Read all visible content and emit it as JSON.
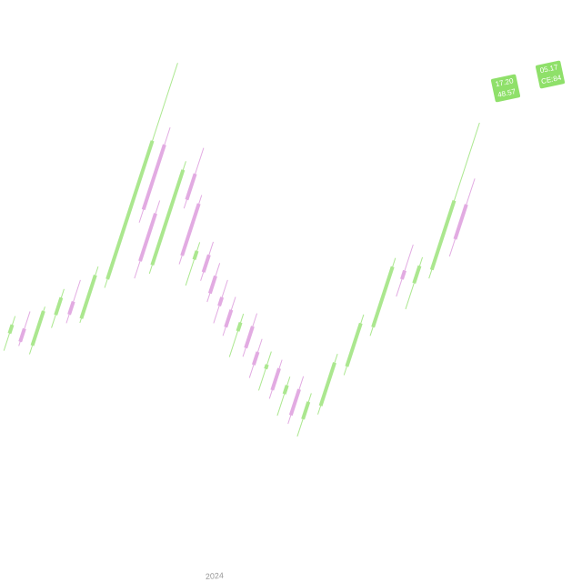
{
  "chart_data": {
    "type": "candlestick",
    "x_label": "2024",
    "up_color": "#8fe06a",
    "down_color": "#d98fd9",
    "ylim": [
      0,
      100
    ],
    "candles": [
      {
        "o": 20,
        "h": 24,
        "l": 16,
        "c": 22
      },
      {
        "o": 22,
        "h": 26,
        "l": 18,
        "c": 19
      },
      {
        "o": 19,
        "h": 28,
        "l": 17,
        "c": 27
      },
      {
        "o": 27,
        "h": 33,
        "l": 24,
        "c": 31
      },
      {
        "o": 31,
        "h": 36,
        "l": 26,
        "c": 28
      },
      {
        "o": 28,
        "h": 40,
        "l": 27,
        "c": 38
      },
      {
        "o": 38,
        "h": 88,
        "l": 36,
        "c": 70
      },
      {
        "o": 70,
        "h": 74,
        "l": 52,
        "c": 55
      },
      {
        "o": 55,
        "h": 58,
        "l": 40,
        "c": 44
      },
      {
        "o": 44,
        "h": 68,
        "l": 42,
        "c": 66
      },
      {
        "o": 66,
        "h": 72,
        "l": 58,
        "c": 60
      },
      {
        "o": 60,
        "h": 62,
        "l": 46,
        "c": 48
      },
      {
        "o": 48,
        "h": 52,
        "l": 42,
        "c": 50
      },
      {
        "o": 50,
        "h": 53,
        "l": 44,
        "c": 46
      },
      {
        "o": 46,
        "h": 49,
        "l": 40,
        "c": 42
      },
      {
        "o": 42,
        "h": 46,
        "l": 36,
        "c": 40
      },
      {
        "o": 40,
        "h": 43,
        "l": 34,
        "c": 36
      },
      {
        "o": 36,
        "h": 40,
        "l": 30,
        "c": 38
      },
      {
        "o": 38,
        "h": 41,
        "l": 31,
        "c": 33
      },
      {
        "o": 33,
        "h": 36,
        "l": 27,
        "c": 30
      },
      {
        "o": 30,
        "h": 34,
        "l": 25,
        "c": 31
      },
      {
        "o": 31,
        "h": 33,
        "l": 24,
        "c": 26
      },
      {
        "o": 26,
        "h": 30,
        "l": 21,
        "c": 28
      },
      {
        "o": 28,
        "h": 31,
        "l": 20,
        "c": 22
      },
      {
        "o": 22,
        "h": 28,
        "l": 18,
        "c": 26
      },
      {
        "o": 26,
        "h": 38,
        "l": 24,
        "c": 36
      },
      {
        "o": 36,
        "h": 48,
        "l": 34,
        "c": 46
      },
      {
        "o": 46,
        "h": 62,
        "l": 44,
        "c": 60
      },
      {
        "o": 60,
        "h": 66,
        "l": 54,
        "c": 58
      },
      {
        "o": 58,
        "h": 64,
        "l": 52,
        "c": 62
      },
      {
        "o": 62,
        "h": 96,
        "l": 60,
        "c": 78
      },
      {
        "o": 78,
        "h": 84,
        "l": 66,
        "c": 70
      }
    ],
    "badges": [
      {
        "top": "17.20",
        "bottom": "48.57"
      },
      {
        "top": "05.17",
        "bottom": "CE:84"
      }
    ]
  }
}
